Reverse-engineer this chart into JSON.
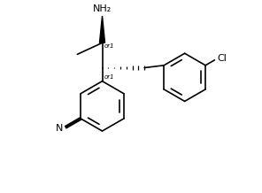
{
  "bg_color": "#ffffff",
  "line_color": "#000000",
  "lw": 1.2,
  "fs": 7,
  "xlim": [
    0,
    10
  ],
  "ylim": [
    0,
    10
  ],
  "b1cx": 3.5,
  "b1cy": 4.5,
  "b1r": 1.3,
  "b2cx": 7.8,
  "b2cy": 6.0,
  "b2r": 1.25,
  "c1x": 3.5,
  "c1y": 7.8,
  "c2x": 3.5,
  "c2y": 6.5,
  "nh2x": 3.5,
  "nh2y": 9.2,
  "ch3x": 2.2,
  "ch3y": 7.2,
  "ch2x": 5.7,
  "ch2y": 6.5
}
